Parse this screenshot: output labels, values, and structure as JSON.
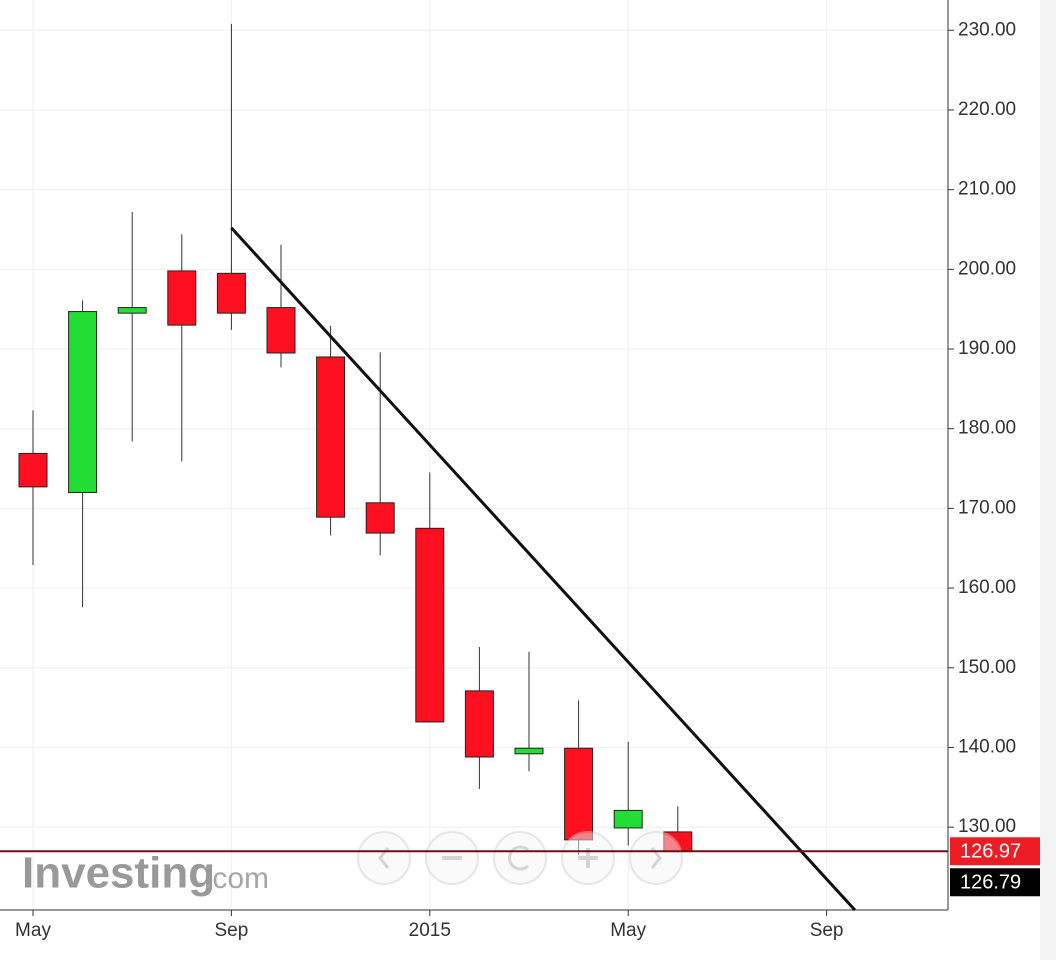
{
  "chart_data": {
    "type": "candlestick",
    "categories": [
      "May",
      null,
      null,
      null,
      "Sep",
      null,
      null,
      null,
      "2015",
      null,
      null,
      null,
      "May",
      null,
      null,
      null,
      "Sep",
      null,
      null
    ],
    "open": [
      176.9,
      172.0,
      194.5,
      199.8,
      199.5,
      195.2,
      189.0,
      170.7,
      167.5,
      147.1,
      139.2,
      139.9,
      129.9,
      129.4,
      null,
      null,
      null,
      null,
      null
    ],
    "high": [
      182.3,
      196.1,
      207.2,
      204.4,
      230.8,
      203.1,
      192.9,
      189.6,
      174.5,
      152.6,
      152.0,
      145.9,
      140.7,
      132.6,
      null,
      null,
      null,
      null,
      null
    ],
    "low": [
      162.9,
      157.6,
      178.4,
      175.9,
      192.4,
      187.7,
      166.6,
      164.1,
      143.2,
      134.8,
      137.0,
      126.5,
      127.7,
      126.8,
      null,
      null,
      null,
      null,
      null
    ],
    "close": [
      172.7,
      194.7,
      195.2,
      193.0,
      194.5,
      189.5,
      168.9,
      166.9,
      143.2,
      138.8,
      139.9,
      128.4,
      132.1,
      126.97,
      null,
      null,
      null,
      null,
      null
    ],
    "up_color": "#22dd33",
    "down_color": "#ff1020",
    "ylim": [
      119.6,
      233.8
    ],
    "yticks": [
      {
        "value": 130,
        "label": "130.00"
      },
      {
        "value": 140,
        "label": "140.00"
      },
      {
        "value": 150,
        "label": "150.00"
      },
      {
        "value": 160,
        "label": "160.00"
      },
      {
        "value": 170,
        "label": "170.00"
      },
      {
        "value": 180,
        "label": "180.00"
      },
      {
        "value": 190,
        "label": "190.00"
      },
      {
        "value": 200,
        "label": "200.00"
      },
      {
        "value": 210,
        "label": "210.00"
      },
      {
        "value": 220,
        "label": "220.00"
      },
      {
        "value": 230,
        "label": "230.00"
      }
    ],
    "grid": true,
    "trend_line": {
      "x": [
        4,
        16.57
      ],
      "y": [
        205.2,
        119.6
      ]
    },
    "last_price": 126.97,
    "last_price_color": "#ee1c25",
    "bid_price": 126.79,
    "watermark": {
      "brand": "Investing",
      "suffix": ".com"
    }
  }
}
